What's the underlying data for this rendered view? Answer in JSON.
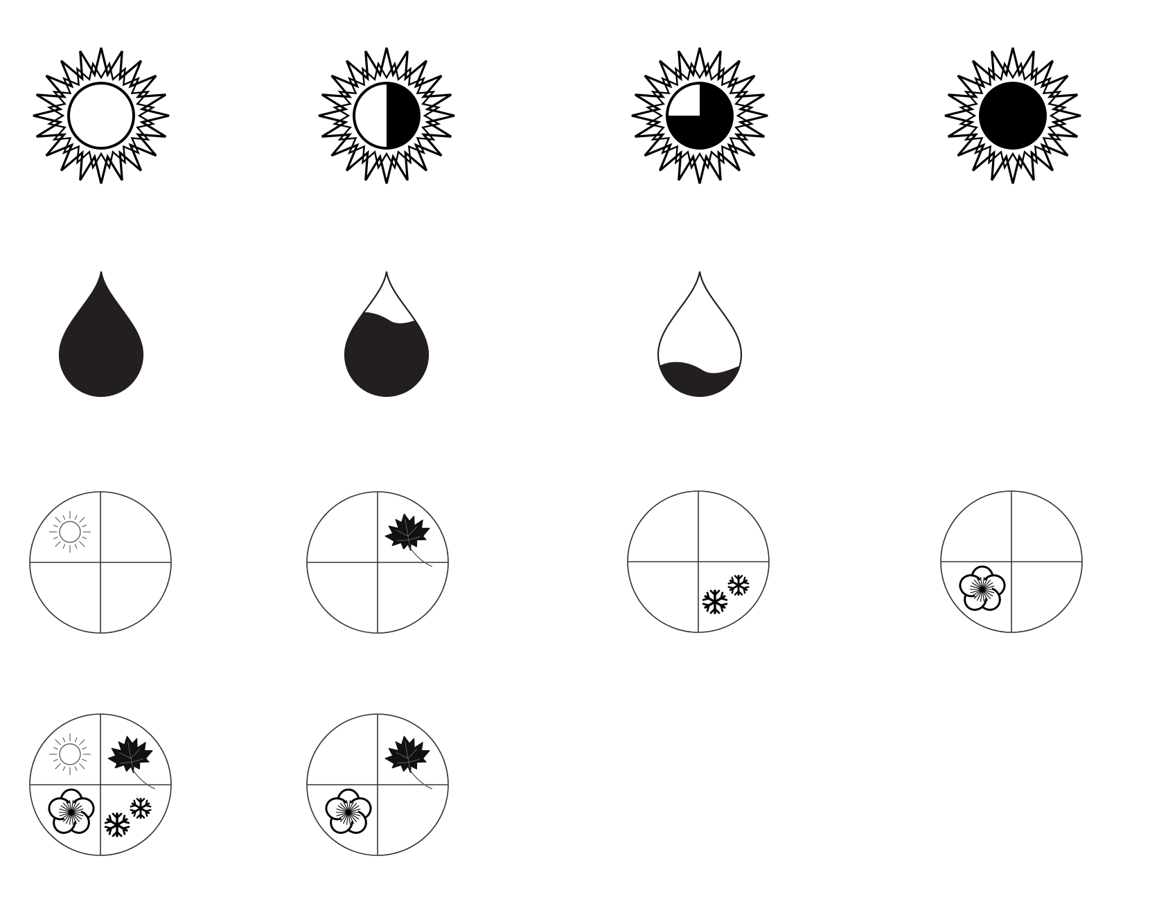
{
  "colors": {
    "ink": "#000000",
    "drop_fill": "#231f20",
    "line": "#333333",
    "background": "#ffffff"
  },
  "sun_icons": [
    {
      "icon": "sun-icon",
      "dark_fraction": 0.0
    },
    {
      "icon": "sun-icon",
      "dark_fraction": 0.5
    },
    {
      "icon": "sun-icon",
      "dark_fraction": 0.75
    },
    {
      "icon": "sun-icon",
      "dark_fraction": 1.0
    }
  ],
  "water_drop_icons": [
    {
      "icon": "water-drop-icon",
      "fill_level": 1.0
    },
    {
      "icon": "water-drop-icon",
      "fill_level": 0.65
    },
    {
      "icon": "water-drop-icon",
      "fill_level": 0.25
    }
  ],
  "season_dials": [
    {
      "icon": "season-dial-icon",
      "quadrants": {
        "top_left": "sun-icon",
        "top_right": null,
        "bottom_left": null,
        "bottom_right": null
      }
    },
    {
      "icon": "season-dial-icon",
      "quadrants": {
        "top_left": null,
        "top_right": "maple-leaf-icon",
        "bottom_left": null,
        "bottom_right": null
      }
    },
    {
      "icon": "season-dial-icon",
      "quadrants": {
        "top_left": null,
        "top_right": null,
        "bottom_left": null,
        "bottom_right": "snowflake-icon"
      }
    },
    {
      "icon": "season-dial-icon",
      "quadrants": {
        "top_left": null,
        "top_right": null,
        "bottom_left": "flower-icon",
        "bottom_right": null
      }
    },
    {
      "icon": "season-dial-icon",
      "quadrants": {
        "top_left": "sun-icon",
        "top_right": "maple-leaf-icon",
        "bottom_left": "flower-icon",
        "bottom_right": "snowflake-icon"
      }
    },
    {
      "icon": "season-dial-icon",
      "quadrants": {
        "top_left": null,
        "top_right": "maple-leaf-icon",
        "bottom_left": "flower-icon",
        "bottom_right": null
      }
    }
  ]
}
